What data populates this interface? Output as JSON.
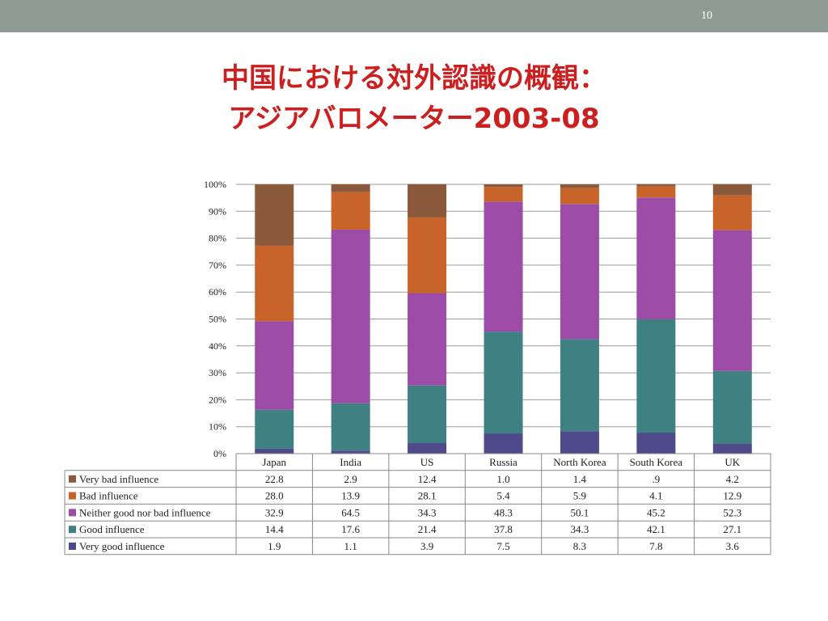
{
  "slide": {
    "number": "10"
  },
  "title": {
    "line1": "中国における対外認識の概観：",
    "line2": "アジアバロメーター2003-08"
  },
  "colors": {
    "very_bad": "#8b5a3c",
    "bad": "#c8642a",
    "neither": "#9c4ba6",
    "good": "#3f8083",
    "very_good": "#4f4a8a",
    "title": "#cc1f1f",
    "topbar": "#8f9c95"
  },
  "chart_data": {
    "type": "bar",
    "stacked": true,
    "percent": true,
    "categories": [
      "Japan",
      "India",
      "US",
      "Russia",
      "North Korea",
      "South Korea",
      "UK"
    ],
    "series": [
      {
        "name": "Very good influence",
        "color": "#4f4a8a",
        "values": [
          1.9,
          1.1,
          3.9,
          7.5,
          8.3,
          7.8,
          3.6
        ],
        "labels": [
          "1.9",
          "1.1",
          "3.9",
          "7.5",
          "8.3",
          "7.8",
          "3.6"
        ]
      },
      {
        "name": "Good influence",
        "color": "#3f8083",
        "values": [
          14.4,
          17.6,
          21.4,
          37.8,
          34.3,
          42.1,
          27.1
        ],
        "labels": [
          "14.4",
          "17.6",
          "21.4",
          "37.8",
          "34.3",
          "42.1",
          "27.1"
        ]
      },
      {
        "name": "Neither good nor bad influence",
        "color": "#9c4ba6",
        "values": [
          32.9,
          64.5,
          34.3,
          48.3,
          50.1,
          45.2,
          52.3
        ],
        "labels": [
          "32.9",
          "64.5",
          "34.3",
          "48.3",
          "50.1",
          "45.2",
          "52.3"
        ]
      },
      {
        "name": "Bad influence",
        "color": "#c8642a",
        "values": [
          28.0,
          13.9,
          28.1,
          5.4,
          5.9,
          4.1,
          12.9
        ],
        "labels": [
          "28.0",
          "13.9",
          "28.1",
          "5.4",
          "5.9",
          "4.1",
          "12.9"
        ]
      },
      {
        "name": "Very bad influence",
        "color": "#8b5a3c",
        "values": [
          22.8,
          2.9,
          12.4,
          1.0,
          1.4,
          0.9,
          4.2
        ],
        "labels": [
          "22.8",
          "2.9",
          "12.4",
          "1.0",
          "1.4",
          ".9",
          "4.2"
        ]
      }
    ],
    "table_row_order": [
      "Very bad influence",
      "Bad influence",
      "Neither good nor bad influence",
      "Good influence",
      "Very good influence"
    ],
    "ylim": [
      0,
      100
    ],
    "yticks": [
      "0%",
      "10%",
      "20%",
      "30%",
      "40%",
      "50%",
      "60%",
      "70%",
      "80%",
      "90%",
      "100%"
    ],
    "grid": true,
    "legend": "data table below chart"
  }
}
